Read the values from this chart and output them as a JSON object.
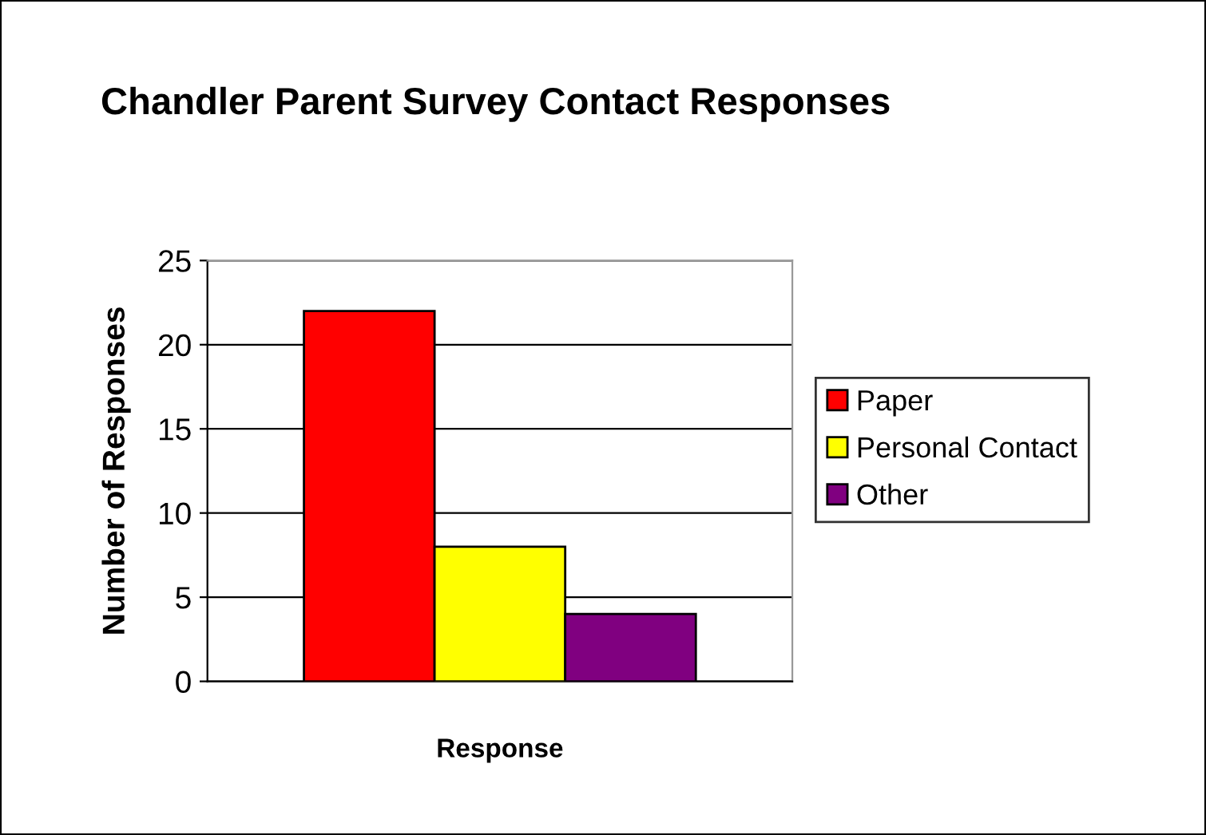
{
  "chart_data": {
    "type": "bar",
    "title": "Chandler Parent Survey Contact Responses",
    "xlabel": "Response",
    "ylabel": "Number of Responses",
    "categories": [
      null
    ],
    "series": [
      {
        "name": "Paper",
        "color": "#ff0000",
        "values": [
          22
        ]
      },
      {
        "name": "Personal Contact",
        "color": "#ffff00",
        "values": [
          8
        ]
      },
      {
        "name": "Other",
        "color": "#800080",
        "values": [
          4
        ]
      }
    ],
    "ylim": [
      0,
      25
    ],
    "yticks": [
      0,
      5,
      10,
      15,
      20,
      25
    ],
    "grid": "y",
    "legend": "right"
  }
}
